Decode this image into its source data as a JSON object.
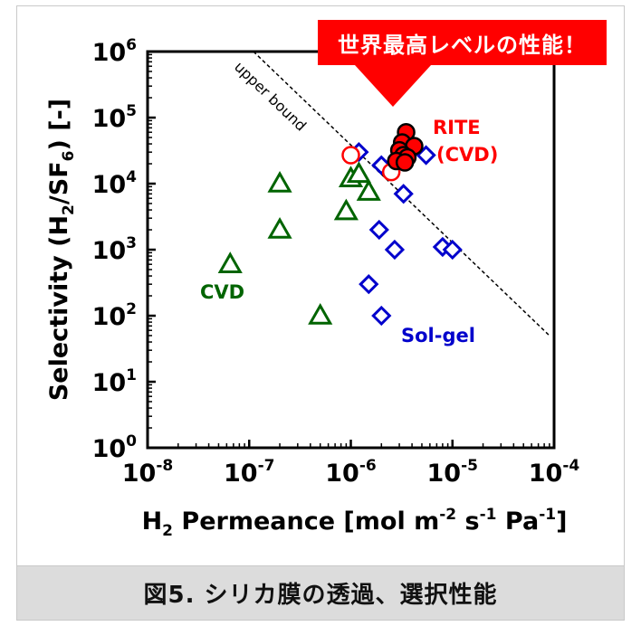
{
  "caption": "図5. シリカ膜の透過、選択性能",
  "banner": "世界最高レベルの性能！",
  "colors": {
    "rite": "#ff0000",
    "solgel": "#0000cc",
    "cvd": "#006400",
    "banner": "#ff0000"
  },
  "chart_data": {
    "type": "scatter",
    "log_x": true,
    "log_y": true,
    "xlim": [
      1e-08,
      0.0001
    ],
    "ylim": [
      1,
      1000000
    ],
    "x_ticks": [
      {
        "base": "10",
        "exp": "-8"
      },
      {
        "base": "10",
        "exp": "-7"
      },
      {
        "base": "10",
        "exp": "-6"
      },
      {
        "base": "10",
        "exp": "-5"
      },
      {
        "base": "10",
        "exp": "-4"
      }
    ],
    "y_ticks": [
      {
        "base": "10",
        "exp": "0"
      },
      {
        "base": "10",
        "exp": "1"
      },
      {
        "base": "10",
        "exp": "2"
      },
      {
        "base": "10",
        "exp": "3"
      },
      {
        "base": "10",
        "exp": "4"
      },
      {
        "base": "10",
        "exp": "5"
      },
      {
        "base": "10",
        "exp": "6"
      }
    ],
    "xlabel": "H2 Permeance [mol m-2 s-1 Pa-1]",
    "ylabel": "Selectivity (H2/SF6) [-]",
    "upper_bound": {
      "label": "upper bound",
      "x": [
        1.1e-07,
        9e-05
      ],
      "y": [
        1000000,
        50
      ]
    },
    "labels": {
      "rite": [
        "RITE",
        "(CVD)"
      ],
      "solgel": "Sol-gel",
      "cvd": "CVD"
    },
    "series": [
      {
        "key": "rite_filled",
        "marker": "filled-circle",
        "points": [
          [
            3.5e-06,
            60000
          ],
          [
            3.2e-06,
            42000
          ],
          [
            4.2e-06,
            37000
          ],
          [
            3e-06,
            32000
          ],
          [
            3.3e-06,
            27000
          ],
          [
            3.6e-06,
            25000
          ],
          [
            2.8e-06,
            22000
          ],
          [
            3.4e-06,
            21000
          ]
        ]
      },
      {
        "key": "rite_open",
        "marker": "open-circle",
        "points": [
          [
            1e-06,
            27000
          ],
          [
            2.5e-06,
            15000
          ]
        ]
      },
      {
        "key": "solgel",
        "marker": "diamond",
        "points": [
          [
            1.2e-06,
            30000
          ],
          [
            2e-06,
            19000
          ],
          [
            5.5e-06,
            27000
          ],
          [
            3.3e-06,
            7000
          ],
          [
            1.9e-06,
            2000
          ],
          [
            2.7e-06,
            1000
          ],
          [
            8e-06,
            1100
          ],
          [
            1e-05,
            1000
          ],
          [
            1.5e-06,
            300
          ],
          [
            2e-06,
            100
          ]
        ]
      },
      {
        "key": "cvd",
        "marker": "open-triangle",
        "points": [
          [
            6.5e-08,
            600
          ],
          [
            2e-07,
            10000
          ],
          [
            2e-07,
            2000
          ],
          [
            1e-06,
            12000
          ],
          [
            9e-07,
            3800
          ],
          [
            1.5e-06,
            7500
          ],
          [
            1.2e-06,
            14000
          ],
          [
            5e-07,
            100
          ]
        ]
      }
    ]
  }
}
